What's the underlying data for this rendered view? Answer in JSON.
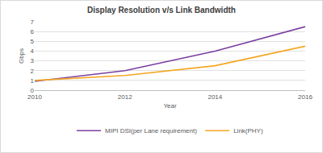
{
  "chart_data": {
    "type": "line",
    "title": "Display Resolution v/s Link Bandwidth",
    "x_label": "Year",
    "y_label": "Gbps",
    "x": [
      2010,
      2012,
      2014,
      2016
    ],
    "series": [
      {
        "name": "MIPI DSI(per Lane requirement)",
        "color": "#7b3fa0",
        "values": [
          0.9,
          2,
          4,
          6.5
        ]
      },
      {
        "name": "Link(PHY)",
        "color": "#f5a623",
        "values": [
          1.0,
          1.5,
          2.5,
          4.5
        ]
      }
    ],
    "xlim": [
      2010,
      2016
    ],
    "xticks": [
      2010,
      2012,
      2014,
      2016
    ],
    "ylim": [
      0,
      7
    ],
    "yticks": [
      0,
      1,
      2,
      3,
      4,
      5,
      6,
      7
    ],
    "grid": true,
    "legend": "bottom"
  }
}
